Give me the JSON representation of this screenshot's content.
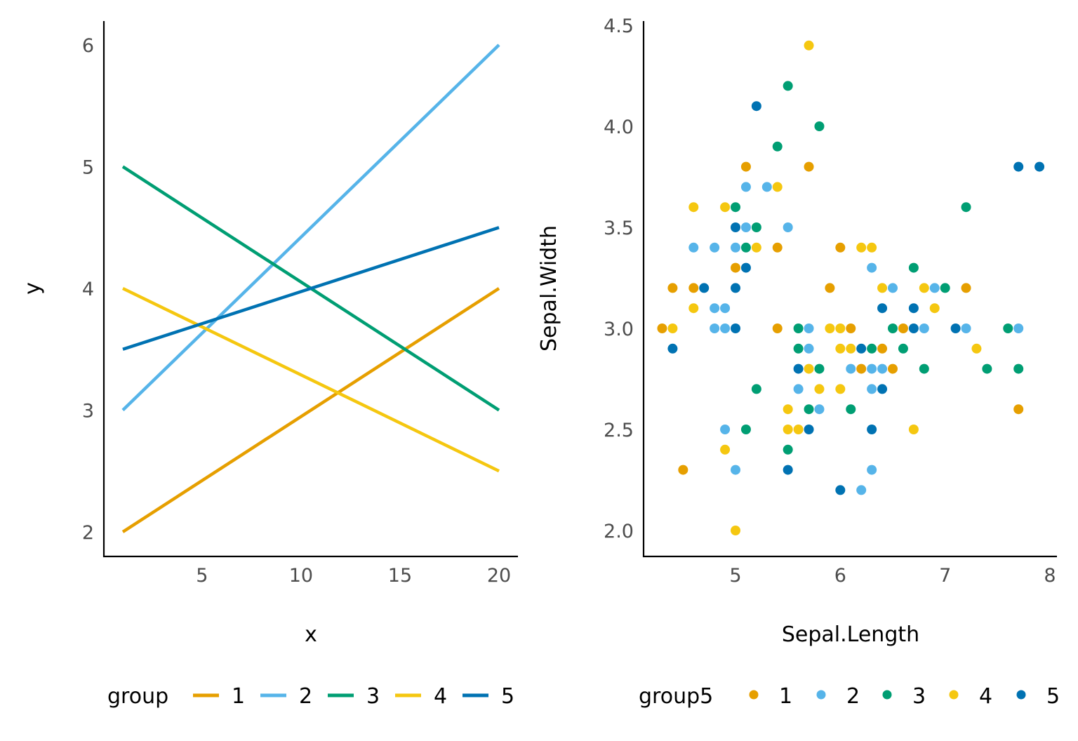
{
  "colors": {
    "1": "#E69F00",
    "2": "#56B4E9",
    "3": "#009E73",
    "4": "#F5C710",
    "5": "#0072B2"
  },
  "chart_data": [
    {
      "type": "line",
      "title": "",
      "xlabel": "x",
      "ylabel": "y",
      "xlim": [
        0,
        21
      ],
      "ylim": [
        1.8,
        6.2
      ],
      "xticks": [
        5,
        10,
        15,
        20
      ],
      "yticks": [
        2,
        3,
        4,
        5,
        6
      ],
      "grid": false,
      "legend": {
        "title": "group",
        "placement": "bottom",
        "entries": [
          "1",
          "2",
          "3",
          "4",
          "5"
        ]
      },
      "series": [
        {
          "name": "1",
          "x": [
            1,
            20
          ],
          "y": [
            2,
            4
          ]
        },
        {
          "name": "2",
          "x": [
            1,
            20
          ],
          "y": [
            3,
            6
          ]
        },
        {
          "name": "3",
          "x": [
            1,
            20
          ],
          "y": [
            5,
            3
          ]
        },
        {
          "name": "4",
          "x": [
            1,
            20
          ],
          "y": [
            4,
            2.5
          ]
        },
        {
          "name": "5",
          "x": [
            1,
            20
          ],
          "y": [
            3.5,
            4.5
          ]
        }
      ]
    },
    {
      "type": "scatter",
      "title": "",
      "xlabel": "Sepal.Length",
      "ylabel": "Sepal.Width",
      "xlim": [
        4.18,
        8.05
      ],
      "ylim": [
        1.88,
        4.52
      ],
      "xticks": [
        5,
        6,
        7,
        8
      ],
      "yticks": [
        "2.0",
        "2.5",
        "3.0",
        "3.5",
        "4.0",
        "4.5"
      ],
      "grid": false,
      "legend": {
        "title": "group5",
        "placement": "bottom",
        "entries": [
          "1",
          "2",
          "3",
          "4",
          "5"
        ]
      },
      "points": [
        {
          "x": 5.7,
          "y": 4.4,
          "g": "4"
        },
        {
          "x": 5.5,
          "y": 4.2,
          "g": "3"
        },
        {
          "x": 5.2,
          "y": 4.1,
          "g": "5"
        },
        {
          "x": 5.8,
          "y": 4.0,
          "g": "3"
        },
        {
          "x": 5.4,
          "y": 3.9,
          "g": "3"
        },
        {
          "x": 5.1,
          "y": 3.8,
          "g": "1"
        },
        {
          "x": 5.7,
          "y": 3.8,
          "g": "1"
        },
        {
          "x": 7.7,
          "y": 3.8,
          "g": "5"
        },
        {
          "x": 7.9,
          "y": 3.8,
          "g": "5"
        },
        {
          "x": 5.1,
          "y": 3.7,
          "g": "2"
        },
        {
          "x": 5.3,
          "y": 3.7,
          "g": "2"
        },
        {
          "x": 5.4,
          "y": 3.7,
          "g": "4"
        },
        {
          "x": 4.6,
          "y": 3.6,
          "g": "4"
        },
        {
          "x": 4.9,
          "y": 3.6,
          "g": "4"
        },
        {
          "x": 5.0,
          "y": 3.6,
          "g": "3"
        },
        {
          "x": 7.2,
          "y": 3.6,
          "g": "3"
        },
        {
          "x": 5.0,
          "y": 3.5,
          "g": "5"
        },
        {
          "x": 5.1,
          "y": 3.5,
          "g": "2"
        },
        {
          "x": 5.2,
          "y": 3.5,
          "g": "3"
        },
        {
          "x": 5.5,
          "y": 3.5,
          "g": "2"
        },
        {
          "x": 4.6,
          "y": 3.4,
          "g": "2"
        },
        {
          "x": 4.8,
          "y": 3.4,
          "g": "2"
        },
        {
          "x": 5.0,
          "y": 3.4,
          "g": "2"
        },
        {
          "x": 5.1,
          "y": 3.4,
          "g": "3"
        },
        {
          "x": 5.2,
          "y": 3.4,
          "g": "4"
        },
        {
          "x": 5.4,
          "y": 3.4,
          "g": "1"
        },
        {
          "x": 6.0,
          "y": 3.4,
          "g": "1"
        },
        {
          "x": 6.2,
          "y": 3.4,
          "g": "4"
        },
        {
          "x": 6.3,
          "y": 3.4,
          "g": "4"
        },
        {
          "x": 5.0,
          "y": 3.3,
          "g": "1"
        },
        {
          "x": 5.1,
          "y": 3.3,
          "g": "5"
        },
        {
          "x": 6.3,
          "y": 3.3,
          "g": "2"
        },
        {
          "x": 6.7,
          "y": 3.3,
          "g": "3"
        },
        {
          "x": 4.4,
          "y": 3.2,
          "g": "1"
        },
        {
          "x": 4.6,
          "y": 3.2,
          "g": "1"
        },
        {
          "x": 4.7,
          "y": 3.2,
          "g": "5"
        },
        {
          "x": 5.0,
          "y": 3.2,
          "g": "5"
        },
        {
          "x": 5.9,
          "y": 3.2,
          "g": "1"
        },
        {
          "x": 6.4,
          "y": 3.2,
          "g": "4"
        },
        {
          "x": 6.5,
          "y": 3.2,
          "g": "2"
        },
        {
          "x": 6.8,
          "y": 3.2,
          "g": "4"
        },
        {
          "x": 6.9,
          "y": 3.2,
          "g": "2"
        },
        {
          "x": 7.0,
          "y": 3.2,
          "g": "3"
        },
        {
          "x": 7.2,
          "y": 3.2,
          "g": "1"
        },
        {
          "x": 4.6,
          "y": 3.1,
          "g": "4"
        },
        {
          "x": 4.8,
          "y": 3.1,
          "g": "2"
        },
        {
          "x": 4.9,
          "y": 3.1,
          "g": "2"
        },
        {
          "x": 6.4,
          "y": 3.1,
          "g": "5"
        },
        {
          "x": 6.7,
          "y": 3.1,
          "g": "5"
        },
        {
          "x": 6.9,
          "y": 3.1,
          "g": "4"
        },
        {
          "x": 4.3,
          "y": 3.0,
          "g": "1"
        },
        {
          "x": 4.4,
          "y": 3.0,
          "g": "4"
        },
        {
          "x": 4.8,
          "y": 3.0,
          "g": "2"
        },
        {
          "x": 4.9,
          "y": 3.0,
          "g": "2"
        },
        {
          "x": 5.0,
          "y": 3.0,
          "g": "5"
        },
        {
          "x": 5.4,
          "y": 3.0,
          "g": "1"
        },
        {
          "x": 5.6,
          "y": 3.0,
          "g": "3"
        },
        {
          "x": 5.7,
          "y": 3.0,
          "g": "2"
        },
        {
          "x": 5.9,
          "y": 3.0,
          "g": "4"
        },
        {
          "x": 6.0,
          "y": 3.0,
          "g": "4"
        },
        {
          "x": 6.1,
          "y": 3.0,
          "g": "1"
        },
        {
          "x": 6.5,
          "y": 3.0,
          "g": "3"
        },
        {
          "x": 6.6,
          "y": 3.0,
          "g": "1"
        },
        {
          "x": 6.7,
          "y": 3.0,
          "g": "5"
        },
        {
          "x": 6.8,
          "y": 3.0,
          "g": "2"
        },
        {
          "x": 7.1,
          "y": 3.0,
          "g": "5"
        },
        {
          "x": 7.2,
          "y": 3.0,
          "g": "2"
        },
        {
          "x": 7.6,
          "y": 3.0,
          "g": "3"
        },
        {
          "x": 7.7,
          "y": 3.0,
          "g": "2"
        },
        {
          "x": 4.4,
          "y": 2.9,
          "g": "5"
        },
        {
          "x": 5.6,
          "y": 2.9,
          "g": "3"
        },
        {
          "x": 5.7,
          "y": 2.9,
          "g": "2"
        },
        {
          "x": 6.0,
          "y": 2.9,
          "g": "4"
        },
        {
          "x": 6.1,
          "y": 2.9,
          "g": "4"
        },
        {
          "x": 6.2,
          "y": 2.9,
          "g": "5"
        },
        {
          "x": 6.3,
          "y": 2.9,
          "g": "3"
        },
        {
          "x": 6.4,
          "y": 2.9,
          "g": "1"
        },
        {
          "x": 6.6,
          "y": 2.9,
          "g": "3"
        },
        {
          "x": 7.3,
          "y": 2.9,
          "g": "4"
        },
        {
          "x": 5.6,
          "y": 2.8,
          "g": "5"
        },
        {
          "x": 5.7,
          "y": 2.8,
          "g": "4"
        },
        {
          "x": 5.8,
          "y": 2.8,
          "g": "3"
        },
        {
          "x": 6.1,
          "y": 2.8,
          "g": "2"
        },
        {
          "x": 6.2,
          "y": 2.8,
          "g": "1"
        },
        {
          "x": 6.3,
          "y": 2.8,
          "g": "2"
        },
        {
          "x": 6.4,
          "y": 2.8,
          "g": "2"
        },
        {
          "x": 6.5,
          "y": 2.8,
          "g": "1"
        },
        {
          "x": 6.8,
          "y": 2.8,
          "g": "3"
        },
        {
          "x": 7.4,
          "y": 2.8,
          "g": "3"
        },
        {
          "x": 7.7,
          "y": 2.8,
          "g": "3"
        },
        {
          "x": 5.2,
          "y": 2.7,
          "g": "3"
        },
        {
          "x": 5.6,
          "y": 2.7,
          "g": "2"
        },
        {
          "x": 5.8,
          "y": 2.7,
          "g": "4"
        },
        {
          "x": 6.0,
          "y": 2.7,
          "g": "4"
        },
        {
          "x": 6.3,
          "y": 2.7,
          "g": "2"
        },
        {
          "x": 6.4,
          "y": 2.7,
          "g": "5"
        },
        {
          "x": 5.5,
          "y": 2.6,
          "g": "4"
        },
        {
          "x": 5.7,
          "y": 2.6,
          "g": "3"
        },
        {
          "x": 5.8,
          "y": 2.6,
          "g": "2"
        },
        {
          "x": 6.1,
          "y": 2.6,
          "g": "3"
        },
        {
          "x": 7.7,
          "y": 2.6,
          "g": "1"
        },
        {
          "x": 4.9,
          "y": 2.5,
          "g": "2"
        },
        {
          "x": 5.1,
          "y": 2.5,
          "g": "3"
        },
        {
          "x": 5.5,
          "y": 2.5,
          "g": "4"
        },
        {
          "x": 5.6,
          "y": 2.5,
          "g": "4"
        },
        {
          "x": 5.7,
          "y": 2.5,
          "g": "5"
        },
        {
          "x": 6.3,
          "y": 2.5,
          "g": "5"
        },
        {
          "x": 6.7,
          "y": 2.5,
          "g": "4"
        },
        {
          "x": 4.9,
          "y": 2.4,
          "g": "4"
        },
        {
          "x": 5.5,
          "y": 2.4,
          "g": "3"
        },
        {
          "x": 4.5,
          "y": 2.3,
          "g": "1"
        },
        {
          "x": 5.0,
          "y": 2.3,
          "g": "2"
        },
        {
          "x": 5.5,
          "y": 2.3,
          "g": "5"
        },
        {
          "x": 6.3,
          "y": 2.3,
          "g": "2"
        },
        {
          "x": 6.0,
          "y": 2.2,
          "g": "5"
        },
        {
          "x": 6.2,
          "y": 2.2,
          "g": "2"
        },
        {
          "x": 5.0,
          "y": 2.0,
          "g": "4"
        }
      ]
    }
  ]
}
